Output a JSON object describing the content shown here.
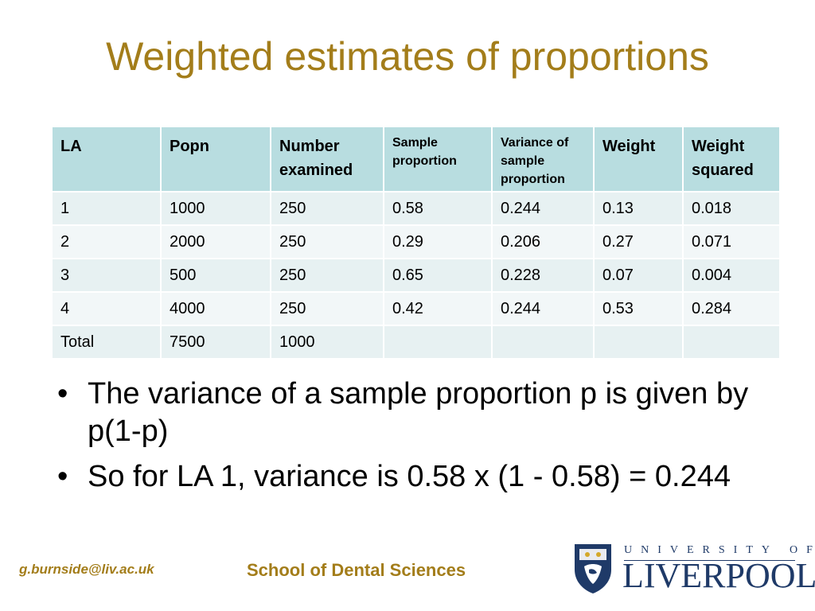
{
  "title": "Weighted estimates of proportions",
  "table": {
    "headers": [
      {
        "line1": "LA",
        "line2": "",
        "line3": ""
      },
      {
        "line1": "Popn",
        "line2": "",
        "line3": ""
      },
      {
        "line1": "Number",
        "line2": "examined",
        "line3": ""
      },
      {
        "line1": "Sample",
        "line2": "proportion",
        "line3": ""
      },
      {
        "line1": "Variance of",
        "line2": "sample",
        "line3": "proportion"
      },
      {
        "line1": "Weight",
        "line2": "",
        "line3": ""
      },
      {
        "line1": "Weight",
        "line2": "squared",
        "line3": ""
      }
    ],
    "rows": [
      [
        "1",
        "1000",
        "250",
        "0.58",
        "0.244",
        "0.13",
        "0.018"
      ],
      [
        "2",
        "2000",
        "250",
        "0.29",
        "0.206",
        "0.27",
        "0.071"
      ],
      [
        "3",
        "500",
        "250",
        "0.65",
        "0.228",
        "0.07",
        "0.004"
      ],
      [
        "4",
        "4000",
        "250",
        "0.42",
        "0.244",
        "0.53",
        "0.284"
      ],
      [
        "Total",
        "7500",
        "1000",
        "",
        "",
        "",
        ""
      ]
    ]
  },
  "bullets": [
    {
      "marker": "•",
      "text": "The variance of a sample proportion p is given by p(1-p)"
    },
    {
      "marker": "•",
      "text": "So for LA 1, variance is 0.58 x (1 - 0.58) = 0.244"
    }
  ],
  "footer": {
    "email": "g.burnside@liv.ac.uk",
    "school": "School of Dental Sciences"
  },
  "logo": {
    "top_text": "UNIVERSITY OF",
    "bottom_text": "LIVERPOOL",
    "name": "university-crest-icon"
  },
  "colors": {
    "title": "#a37d1a",
    "header_bg": "#b8dde0",
    "row_bg_a": "#e7f1f2",
    "row_bg_b": "#f2f7f8",
    "logo_navy": "#1f3a68"
  }
}
